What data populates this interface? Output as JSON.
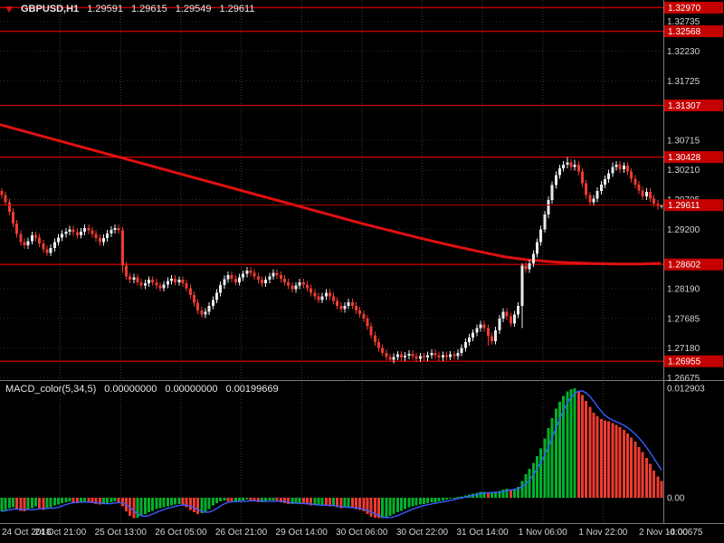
{
  "main_legend": {
    "symbol": "GBPUSD,H1",
    "open": "1.29591",
    "high": "1.29615",
    "low": "1.29549",
    "close": "1.29611"
  },
  "macd_legend": {
    "title": "MACD_color(5,34,5)",
    "value1": "0.00000000",
    "value2": "0.00000000",
    "value3": "0.00199669"
  },
  "colors": {
    "background": "#000000",
    "accent_red": "#c40000",
    "candle_up": "#e6ecf2",
    "candle_down": "#ee3b30",
    "ma_line": "#e01010",
    "macd_up": "#00b22d",
    "macd_down": "#ee3b30",
    "macd_signal": "#3b5bff",
    "axis_text": "#d4d4d4",
    "badge_text": "#ffffff",
    "grid_vertical": "#3d3d3d",
    "grid_horizontal": "#2e2e2e",
    "separator": "#7a7a7a"
  },
  "chart_data": [
    {
      "type": "candlestick",
      "title": "GBPUSD,H1",
      "ylabel": "price",
      "ylim": [
        1.2665,
        1.331
      ],
      "grid": true,
      "first_open": 1.2985,
      "default_wick": 0.0006,
      "closes": [
        1.2978,
        1.2966,
        1.295,
        1.293,
        1.2912,
        1.2898,
        1.2893,
        1.29,
        1.291,
        1.2906,
        1.2896,
        1.2886,
        1.288,
        1.2888,
        1.2898,
        1.2906,
        1.2912,
        1.2916,
        1.292,
        1.2915,
        1.291,
        1.2916,
        1.2922,
        1.2918,
        1.2912,
        1.2905,
        1.2898,
        1.2905,
        1.2913,
        1.2919,
        1.2922,
        1.2918,
        1.2858,
        1.284,
        1.2834,
        1.2838,
        1.283,
        1.2824,
        1.2828,
        1.2834,
        1.283,
        1.2824,
        1.282,
        1.2826,
        1.2832,
        1.2836,
        1.283,
        1.2834,
        1.2828,
        1.282,
        1.2808,
        1.2795,
        1.2782,
        1.2775,
        1.278,
        1.279,
        1.28,
        1.2812,
        1.2825,
        1.2835,
        1.2842,
        1.2836,
        1.283,
        1.2838,
        1.2844,
        1.285,
        1.2846,
        1.284,
        1.2834,
        1.2828,
        1.2834,
        1.284,
        1.2846,
        1.2842,
        1.2836,
        1.283,
        1.2824,
        1.2818,
        1.2824,
        1.283,
        1.2826,
        1.282,
        1.2812,
        1.2806,
        1.28,
        1.2806,
        1.2812,
        1.2806,
        1.2798,
        1.279,
        1.2784,
        1.279,
        1.2796,
        1.279,
        1.2782,
        1.2776,
        1.2768,
        1.2755,
        1.274,
        1.2728,
        1.2718,
        1.271,
        1.2703,
        1.2698,
        1.2703,
        1.2707,
        1.2702,
        1.2705,
        1.2708,
        1.2704,
        1.27,
        1.2704,
        1.2702,
        1.2706,
        1.271,
        1.2706,
        1.2702,
        1.2706,
        1.2703,
        1.2707,
        1.2704,
        1.271,
        1.2718,
        1.2728,
        1.2736,
        1.2744,
        1.2752,
        1.2758,
        1.2752,
        1.2738,
        1.273,
        1.2748,
        1.2768,
        1.278,
        1.2772,
        1.276,
        1.2775,
        1.279,
        1.2858,
        1.2852,
        1.2862,
        1.2878,
        1.2898,
        1.292,
        1.2945,
        1.297,
        1.2995,
        1.3012,
        1.3024,
        1.303,
        1.3034,
        1.3026,
        1.303,
        1.3018,
        1.2998,
        1.2978,
        1.2966,
        1.2972,
        1.2985,
        1.2996,
        1.3005,
        1.3015,
        1.3026,
        1.303,
        1.3022,
        1.3028,
        1.3018,
        1.3006,
        1.2996,
        1.2986,
        1.2976,
        1.2984,
        1.2972,
        1.2964,
        1.29591,
        1.29611
      ],
      "wick_overrides": {
        "0": {
          "h": 1.299
        },
        "32": {
          "l": 1.2846
        },
        "53": {
          "l": 1.277
        },
        "103": {
          "l": 1.2696
        },
        "129": {
          "l": 1.2722
        },
        "138": {
          "l": 1.2752,
          "h": 1.2862
        },
        "150": {
          "h": 1.30428
        },
        "152": {
          "h": 1.3038
        },
        "162": {
          "h": 1.3034
        },
        "163": {
          "h": 1.3036
        },
        "175": {
          "h": 1.29615,
          "l": 1.29549
        }
      },
      "ma_points": [
        [
          0,
          1.3098
        ],
        [
          16,
          1.307
        ],
        [
          32,
          1.3042
        ],
        [
          48,
          1.3014
        ],
        [
          64,
          1.2986
        ],
        [
          80,
          1.2958
        ],
        [
          96,
          1.293
        ],
        [
          104,
          1.2917
        ],
        [
          112,
          1.2904
        ],
        [
          120,
          1.2892
        ],
        [
          128,
          1.2881
        ],
        [
          134,
          1.2873
        ],
        [
          140,
          1.2868
        ],
        [
          148,
          1.2864
        ],
        [
          156,
          1.2862
        ],
        [
          164,
          1.2861
        ],
        [
          170,
          1.2861
        ],
        [
          175,
          1.2862
        ]
      ],
      "levels": [
        {
          "value": 1.3297,
          "label": "1.32970"
        },
        {
          "value": 1.32568,
          "label": "1.32568"
        },
        {
          "value": 1.31307,
          "label": "1.31307"
        },
        {
          "value": 1.30428,
          "label": "1.30428"
        },
        {
          "value": 1.28602,
          "label": "1.28602"
        },
        {
          "value": 1.26955,
          "label": "1.26955"
        }
      ],
      "current_price": {
        "value": 1.29611,
        "label": "1.29611"
      },
      "y_ticks": [
        {
          "value": 1.32735,
          "label": "1.32735"
        },
        {
          "value": 1.3223,
          "label": "1.32230"
        },
        {
          "value": 1.31725,
          "label": "1.31725"
        },
        {
          "value": 1.30715,
          "label": "1.30715"
        },
        {
          "value": 1.3021,
          "label": "1.30210"
        },
        {
          "value": 1.29705,
          "label": "1.29705"
        },
        {
          "value": 1.292,
          "label": "1.29200"
        },
        {
          "value": 1.2819,
          "label": "1.28190"
        },
        {
          "value": 1.27685,
          "label": "1.27685"
        },
        {
          "value": 1.2718,
          "label": "1.27180"
        },
        {
          "value": 1.26675,
          "label": "1.26675"
        }
      ],
      "x_ticks": [
        {
          "index": 0,
          "label": "24 Oct 2018"
        },
        {
          "index": 16,
          "label": "24 Oct 21:00"
        },
        {
          "index": 32,
          "label": "25 Oct 13:00"
        },
        {
          "index": 48,
          "label": "26 Oct 05:00"
        },
        {
          "index": 64,
          "label": "26 Oct 21:00"
        },
        {
          "index": 80,
          "label": "29 Oct 14:00"
        },
        {
          "index": 96,
          "label": "30 Oct 06:00"
        },
        {
          "index": 112,
          "label": "30 Oct 22:00"
        },
        {
          "index": 128,
          "label": "31 Oct 14:00"
        },
        {
          "index": 144,
          "label": "1 Nov 06:00"
        },
        {
          "index": 160,
          "label": "1 Nov 22:00"
        },
        {
          "index": 176,
          "label": "2 Nov 14:00"
        }
      ]
    },
    {
      "type": "macd_histogram",
      "title": "MACD_color(5,34,5)",
      "ylim": [
        -0.002961,
        0.013749
      ],
      "signal_period": 5,
      "values": [
        -0.0016,
        -0.0014,
        -0.0012,
        -0.0011,
        -0.0013,
        -0.0015,
        -0.0016,
        -0.0014,
        -0.0012,
        -0.001,
        -0.0012,
        -0.0014,
        -0.0013,
        -0.0011,
        -0.0009,
        -0.0008,
        -0.0006,
        -0.0005,
        -0.0004,
        -0.0005,
        -0.0006,
        -0.0005,
        -0.0004,
        -0.0005,
        -0.0006,
        -0.0007,
        -0.0008,
        -0.0007,
        -0.0006,
        -0.0005,
        -0.0004,
        -0.0005,
        -0.001,
        -0.0016,
        -0.0021,
        -0.0024,
        -0.0023,
        -0.0021,
        -0.0019,
        -0.0017,
        -0.0015,
        -0.0013,
        -0.0012,
        -0.0011,
        -0.001,
        -0.0009,
        -0.0008,
        -0.0007,
        -0.0008,
        -0.0011,
        -0.0014,
        -0.0017,
        -0.0019,
        -0.0018,
        -0.0016,
        -0.0013,
        -0.0009,
        -0.0006,
        -0.0004,
        -0.0003,
        -0.0004,
        -0.0005,
        -0.0005,
        -0.0004,
        -0.0003,
        -0.0002,
        -0.0003,
        -0.0004,
        -0.0005,
        -0.0005,
        -0.0004,
        -0.0003,
        -0.0003,
        -0.0004,
        -0.0005,
        -0.0006,
        -0.0007,
        -0.0007,
        -0.0006,
        -0.0006,
        -0.0007,
        -0.0008,
        -0.0009,
        -0.0009,
        -0.0008,
        -0.0008,
        -0.0009,
        -0.001,
        -0.001,
        -0.0011,
        -0.0012,
        -0.0011,
        -0.0011,
        -0.0012,
        -0.0013,
        -0.0014,
        -0.0016,
        -0.0019,
        -0.0022,
        -0.0023,
        -0.0024,
        -0.0024,
        -0.0023,
        -0.0021,
        -0.0019,
        -0.0017,
        -0.0015,
        -0.0013,
        -0.0011,
        -0.001,
        -0.0009,
        -0.0008,
        -0.0007,
        -0.0006,
        -0.0005,
        -0.0005,
        -0.0004,
        -0.0003,
        -0.0002,
        -0.0001,
        0.0,
        0.0001,
        0.0002,
        0.0003,
        0.0004,
        0.0005,
        0.0006,
        0.0007,
        0.0007,
        0.0006,
        0.0006,
        0.0007,
        0.0008,
        0.001,
        0.0011,
        0.001,
        0.0011,
        0.0013,
        0.002,
        0.0028,
        0.0034,
        0.0041,
        0.0049,
        0.0058,
        0.007,
        0.0082,
        0.0094,
        0.0105,
        0.0113,
        0.012,
        0.0125,
        0.0128,
        0.0129,
        0.0126,
        0.0121,
        0.0114,
        0.0107,
        0.01,
        0.0096,
        0.0093,
        0.0091,
        0.009,
        0.0088,
        0.0086,
        0.0083,
        0.008,
        0.0076,
        0.0071,
        0.0066,
        0.006,
        0.0054,
        0.0047,
        0.004,
        0.0032,
        0.0025,
        0.002
      ],
      "y_ticks": [
        {
          "value": 0.012903,
          "label": "0.012903",
          "clamp": false
        },
        {
          "value": 0.0,
          "label": "0.00",
          "clamp": false
        },
        {
          "value": -0.00675,
          "label": "-0.00675",
          "clamp": true
        }
      ]
    }
  ]
}
